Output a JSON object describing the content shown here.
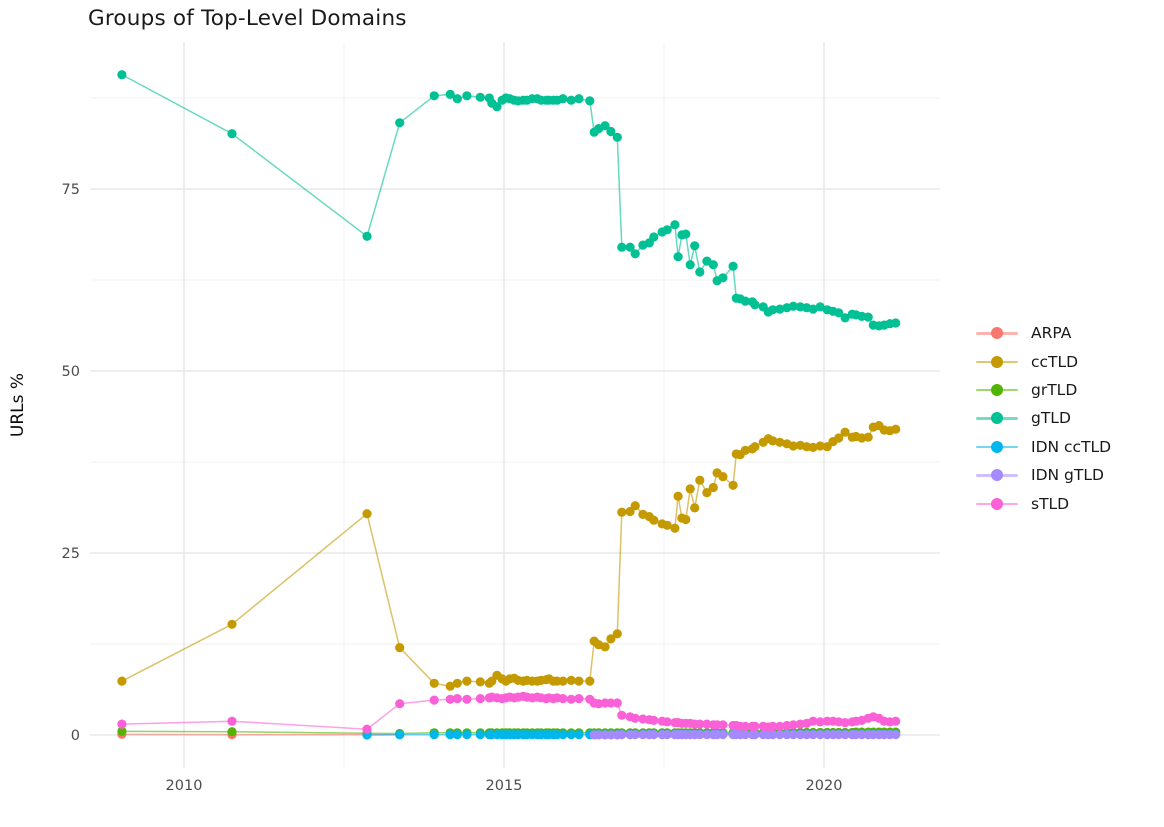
{
  "chart_data": {
    "type": "line",
    "title": "Groups of Top-Level Domains",
    "xlabel": "",
    "ylabel": "URLs %",
    "grid": "major+minor",
    "legend_position": "right",
    "axes": {
      "x": {
        "ticks": [
          2010,
          2015,
          2020
        ],
        "tick_labels": [
          "2010",
          "2015",
          "2020"
        ],
        "minor_ticks": [
          2012.5,
          2017.5
        ],
        "range": [
          2008.5,
          2021.8
        ]
      },
      "y": {
        "ticks": [
          0,
          25,
          50,
          75
        ],
        "tick_labels": [
          "0",
          "25",
          "50",
          "75"
        ],
        "minor_ticks": [
          12.5,
          37.5,
          62.5,
          87.5
        ],
        "range": [
          -4.5,
          95.2
        ]
      }
    },
    "series": [
      {
        "name": "ARPA",
        "color": "#F8766D",
        "x": [
          2009.03,
          2010.75,
          2012.86,
          2013.37
        ],
        "y": [
          0.1,
          0.05,
          0.05,
          0.03
        ]
      },
      {
        "name": "ccTLD",
        "color": "#C49A00",
        "x": [
          2009.03,
          2010.75,
          2012.86,
          2013.37,
          2013.91,
          2014.16,
          2014.27,
          2014.42,
          2014.63,
          2014.77,
          2014.81,
          2014.89,
          2014.97,
          2015.03,
          2015.09,
          2015.16,
          2015.22,
          2015.3,
          2015.36,
          2015.44,
          2015.52,
          2015.58,
          2015.66,
          2015.7,
          2015.77,
          2015.83,
          2015.92,
          2016.05,
          2016.17,
          2016.34,
          2016.41,
          2016.48,
          2016.58,
          2016.67,
          2016.77,
          2016.84,
          2016.97,
          2017.05,
          2017.17,
          2017.27,
          2017.34,
          2017.47,
          2017.55,
          2017.67,
          2017.72,
          2017.78,
          2017.84,
          2017.91,
          2017.98,
          2018.06,
          2018.17,
          2018.27,
          2018.33,
          2018.42,
          2018.58,
          2018.63,
          2018.69,
          2018.77,
          2018.88,
          2018.92,
          2019.05,
          2019.13,
          2019.2,
          2019.31,
          2019.42,
          2019.52,
          2019.63,
          2019.73,
          2019.83,
          2019.94,
          2020.05,
          2020.14,
          2020.23,
          2020.33,
          2020.44,
          2020.5,
          2020.59,
          2020.69,
          2020.77,
          2020.86,
          2020.94,
          2021.03,
          2021.12
        ],
        "y": [
          7.4,
          15.2,
          30.4,
          12.0,
          7.1,
          6.7,
          7.1,
          7.4,
          7.3,
          7.1,
          7.4,
          8.2,
          7.7,
          7.4,
          7.7,
          7.8,
          7.5,
          7.4,
          7.5,
          7.4,
          7.4,
          7.5,
          7.6,
          7.7,
          7.4,
          7.4,
          7.4,
          7.5,
          7.4,
          7.4,
          12.9,
          12.4,
          12.1,
          13.2,
          13.9,
          30.6,
          30.7,
          31.5,
          30.3,
          30.0,
          29.5,
          29.0,
          28.8,
          28.4,
          32.8,
          29.8,
          29.6,
          33.8,
          31.2,
          35.0,
          33.3,
          34.0,
          36.0,
          35.5,
          34.3,
          38.6,
          38.5,
          39.1,
          39.3,
          39.6,
          40.2,
          40.7,
          40.4,
          40.2,
          40.0,
          39.7,
          39.8,
          39.6,
          39.5,
          39.7,
          39.6,
          40.3,
          40.8,
          41.6,
          40.9,
          41.0,
          40.8,
          40.9,
          42.3,
          42.5,
          41.9,
          41.8,
          42.0
        ]
      },
      {
        "name": "grTLD",
        "color": "#53B400",
        "x": [
          2009.03,
          2010.75,
          2012.86,
          2013.37,
          2013.91,
          2014.16,
          2014.27,
          2014.42,
          2014.63,
          2014.77,
          2014.81,
          2014.89,
          2014.97,
          2015.03,
          2015.09,
          2015.16,
          2015.22,
          2015.3,
          2015.36,
          2015.44,
          2015.52,
          2015.58,
          2015.66,
          2015.7,
          2015.77,
          2015.83,
          2015.92,
          2016.05,
          2016.17,
          2016.34,
          2016.41,
          2016.48,
          2016.58,
          2016.67,
          2016.77,
          2016.84,
          2016.97,
          2017.05,
          2017.17,
          2017.27,
          2017.34,
          2017.47,
          2017.55,
          2017.67,
          2017.72,
          2017.78,
          2017.84,
          2017.91,
          2017.98,
          2018.06,
          2018.17,
          2018.27,
          2018.33,
          2018.42,
          2018.58,
          2018.63,
          2018.69,
          2018.77,
          2018.88,
          2018.92,
          2019.05,
          2019.13,
          2019.2,
          2019.31,
          2019.42,
          2019.52,
          2019.63,
          2019.73,
          2019.83,
          2019.94,
          2020.05,
          2020.14,
          2020.23,
          2020.33,
          2020.44,
          2020.5,
          2020.59,
          2020.69,
          2020.77,
          2020.86,
          2020.94,
          2021.03,
          2021.12
        ],
        "y": [
          0.5,
          0.45,
          0.25,
          0.2,
          0.3,
          0.3,
          0.3,
          0.3,
          0.3,
          0.3,
          0.3,
          0.3,
          0.3,
          0.3,
          0.3,
          0.3,
          0.3,
          0.3,
          0.3,
          0.3,
          0.3,
          0.3,
          0.3,
          0.3,
          0.3,
          0.3,
          0.3,
          0.3,
          0.3,
          0.3,
          0.3,
          0.3,
          0.3,
          0.3,
          0.3,
          0.3,
          0.3,
          0.3,
          0.3,
          0.3,
          0.3,
          0.3,
          0.3,
          0.3,
          0.3,
          0.3,
          0.3,
          0.3,
          0.3,
          0.3,
          0.3,
          0.3,
          0.3,
          0.3,
          0.3,
          0.3,
          0.3,
          0.3,
          0.3,
          0.3,
          0.3,
          0.3,
          0.3,
          0.3,
          0.3,
          0.35,
          0.35,
          0.35,
          0.35,
          0.35,
          0.35,
          0.35,
          0.35,
          0.35,
          0.35,
          0.4,
          0.4,
          0.4,
          0.4,
          0.4,
          0.4,
          0.4,
          0.4
        ]
      },
      {
        "name": "gTLD",
        "color": "#00C094",
        "x": [
          2009.03,
          2010.75,
          2012.86,
          2013.37,
          2013.91,
          2014.16,
          2014.27,
          2014.42,
          2014.63,
          2014.77,
          2014.81,
          2014.89,
          2014.97,
          2015.03,
          2015.09,
          2015.16,
          2015.22,
          2015.3,
          2015.36,
          2015.44,
          2015.52,
          2015.58,
          2015.66,
          2015.7,
          2015.77,
          2015.83,
          2015.92,
          2016.05,
          2016.17,
          2016.34,
          2016.41,
          2016.48,
          2016.58,
          2016.67,
          2016.77,
          2016.84,
          2016.97,
          2017.05,
          2017.17,
          2017.27,
          2017.34,
          2017.47,
          2017.55,
          2017.67,
          2017.72,
          2017.78,
          2017.84,
          2017.91,
          2017.98,
          2018.06,
          2018.17,
          2018.27,
          2018.33,
          2018.42,
          2018.58,
          2018.63,
          2018.69,
          2018.77,
          2018.88,
          2018.92,
          2019.05,
          2019.13,
          2019.2,
          2019.31,
          2019.42,
          2019.52,
          2019.63,
          2019.73,
          2019.83,
          2019.94,
          2020.05,
          2020.14,
          2020.23,
          2020.33,
          2020.44,
          2020.5,
          2020.59,
          2020.69,
          2020.77,
          2020.86,
          2020.94,
          2021.03,
          2021.12
        ],
        "y": [
          90.7,
          82.6,
          68.5,
          84.1,
          87.8,
          88.0,
          87.4,
          87.8,
          87.6,
          87.5,
          86.8,
          86.3,
          87.2,
          87.5,
          87.4,
          87.2,
          87.1,
          87.2,
          87.2,
          87.4,
          87.4,
          87.2,
          87.2,
          87.2,
          87.2,
          87.2,
          87.4,
          87.2,
          87.4,
          87.1,
          82.8,
          83.3,
          83.7,
          82.9,
          82.1,
          67.0,
          67.0,
          66.1,
          67.3,
          67.6,
          68.4,
          69.1,
          69.4,
          70.1,
          65.7,
          68.7,
          68.8,
          64.6,
          67.2,
          63.6,
          65.1,
          64.6,
          62.4,
          62.8,
          64.4,
          60.0,
          59.9,
          59.6,
          59.5,
          59.1,
          58.8,
          58.1,
          58.4,
          58.5,
          58.7,
          58.9,
          58.8,
          58.7,
          58.5,
          58.8,
          58.4,
          58.2,
          58.0,
          57.3,
          57.8,
          57.7,
          57.5,
          57.4,
          56.3,
          56.2,
          56.3,
          56.5,
          56.6
        ]
      },
      {
        "name": "IDN ccTLD",
        "color": "#00B6EB",
        "x": [
          2012.86,
          2013.37,
          2013.91,
          2014.16,
          2014.27,
          2014.42,
          2014.63,
          2014.77,
          2014.81,
          2014.89,
          2014.97,
          2015.03,
          2015.09,
          2015.16,
          2015.22,
          2015.3,
          2015.36,
          2015.44,
          2015.52,
          2015.58,
          2015.66,
          2015.7,
          2015.77,
          2015.83,
          2015.92,
          2016.05,
          2016.17,
          2016.34,
          2016.41,
          2016.48,
          2016.58,
          2016.67,
          2016.77,
          2016.84,
          2016.97,
          2017.05,
          2017.17,
          2017.27,
          2017.34,
          2017.47,
          2017.55,
          2017.67,
          2017.72,
          2017.78,
          2017.84,
          2017.91,
          2017.98,
          2018.06,
          2018.17,
          2018.27,
          2018.33,
          2018.42,
          2018.58,
          2018.63,
          2018.69,
          2018.77,
          2018.88,
          2018.92,
          2019.05,
          2019.13,
          2019.2,
          2019.31,
          2019.42,
          2019.52,
          2019.63,
          2019.73,
          2019.83,
          2019.94,
          2020.05,
          2020.14,
          2020.23,
          2020.33,
          2020.44,
          2020.5,
          2020.59,
          2020.69,
          2020.77,
          2020.86,
          2020.94,
          2021.03,
          2021.12
        ],
        "y": [
          0.0,
          0.05,
          0.05,
          0.05,
          0.05,
          0.05,
          0.05,
          0.05,
          0.05,
          0.05,
          0.05,
          0.05,
          0.05,
          0.05,
          0.05,
          0.05,
          0.05,
          0.05,
          0.05,
          0.05,
          0.05,
          0.05,
          0.05,
          0.05,
          0.05,
          0.05,
          0.05,
          0.05,
          0.05,
          0.05,
          0.05,
          0.05,
          0.05,
          0.1,
          0.1,
          0.1,
          0.1,
          0.1,
          0.1,
          0.1,
          0.1,
          0.1,
          0.1,
          0.1,
          0.1,
          0.1,
          0.1,
          0.1,
          0.1,
          0.1,
          0.1,
          0.1,
          0.1,
          0.1,
          0.1,
          0.1,
          0.1,
          0.1,
          0.1,
          0.1,
          0.1,
          0.1,
          0.1,
          0.1,
          0.1,
          0.1,
          0.1,
          0.1,
          0.1,
          0.1,
          0.1,
          0.1,
          0.1,
          0.1,
          0.1,
          0.1,
          0.1,
          0.1,
          0.1,
          0.1,
          0.1
        ]
      },
      {
        "name": "IDN gTLD",
        "color": "#A58AFF",
        "x": [
          2016.41,
          2016.48,
          2016.58,
          2016.67,
          2016.77,
          2016.84,
          2016.97,
          2017.05,
          2017.17,
          2017.27,
          2017.34,
          2017.47,
          2017.55,
          2017.67,
          2017.72,
          2017.78,
          2017.84,
          2017.91,
          2017.98,
          2018.06,
          2018.17,
          2018.27,
          2018.33,
          2018.42,
          2018.58,
          2018.63,
          2018.69,
          2018.77,
          2018.88,
          2018.92,
          2019.05,
          2019.13,
          2019.2,
          2019.31,
          2019.42,
          2019.52,
          2019.63,
          2019.73,
          2019.83,
          2019.94,
          2020.05,
          2020.14,
          2020.23,
          2020.33,
          2020.44,
          2020.5,
          2020.59,
          2020.69,
          2020.77,
          2020.86,
          2020.94,
          2021.03,
          2021.12
        ],
        "y": [
          0.02,
          0.02,
          0.02,
          0.02,
          0.02,
          0.05,
          0.05,
          0.05,
          0.05,
          0.05,
          0.05,
          0.05,
          0.05,
          0.05,
          0.05,
          0.05,
          0.05,
          0.05,
          0.05,
          0.05,
          0.05,
          0.05,
          0.05,
          0.05,
          0.05,
          0.05,
          0.05,
          0.05,
          0.05,
          0.05,
          0.05,
          0.05,
          0.05,
          0.05,
          0.05,
          0.05,
          0.05,
          0.05,
          0.05,
          0.05,
          0.05,
          0.05,
          0.05,
          0.05,
          0.05,
          0.05,
          0.05,
          0.05,
          0.05,
          0.05,
          0.05,
          0.05,
          0.05
        ]
      },
      {
        "name": "sTLD",
        "color": "#FB61D7",
        "x": [
          2009.03,
          2010.75,
          2012.86,
          2013.37,
          2013.91,
          2014.16,
          2014.27,
          2014.42,
          2014.63,
          2014.77,
          2014.81,
          2014.89,
          2014.97,
          2015.03,
          2015.09,
          2015.16,
          2015.22,
          2015.3,
          2015.36,
          2015.44,
          2015.52,
          2015.58,
          2015.66,
          2015.7,
          2015.77,
          2015.83,
          2015.92,
          2016.05,
          2016.17,
          2016.34,
          2016.41,
          2016.48,
          2016.58,
          2016.67,
          2016.77,
          2016.84,
          2016.97,
          2017.05,
          2017.17,
          2017.27,
          2017.34,
          2017.47,
          2017.55,
          2017.67,
          2017.72,
          2017.78,
          2017.84,
          2017.91,
          2017.98,
          2018.06,
          2018.17,
          2018.27,
          2018.33,
          2018.42,
          2018.58,
          2018.63,
          2018.69,
          2018.77,
          2018.88,
          2018.92,
          2019.05,
          2019.13,
          2019.2,
          2019.31,
          2019.42,
          2019.52,
          2019.63,
          2019.73,
          2019.83,
          2019.94,
          2020.05,
          2020.14,
          2020.23,
          2020.33,
          2020.44,
          2020.5,
          2020.59,
          2020.69,
          2020.77,
          2020.86,
          2020.94,
          2021.03,
          2021.12
        ],
        "y": [
          1.5,
          1.9,
          0.8,
          4.3,
          4.8,
          4.9,
          5.0,
          4.9,
          5.0,
          5.1,
          5.2,
          5.1,
          5.0,
          5.1,
          5.2,
          5.1,
          5.2,
          5.3,
          5.2,
          5.1,
          5.2,
          5.1,
          5.0,
          5.1,
          5.0,
          5.1,
          5.0,
          4.9,
          5.0,
          4.9,
          4.4,
          4.3,
          4.4,
          4.4,
          4.4,
          2.7,
          2.5,
          2.3,
          2.2,
          2.1,
          2.0,
          1.9,
          1.8,
          1.7,
          1.7,
          1.6,
          1.6,
          1.6,
          1.5,
          1.5,
          1.5,
          1.4,
          1.4,
          1.4,
          1.3,
          1.3,
          1.2,
          1.2,
          1.2,
          1.2,
          1.2,
          1.1,
          1.2,
          1.2,
          1.3,
          1.4,
          1.5,
          1.6,
          1.9,
          1.8,
          1.9,
          1.9,
          1.8,
          1.7,
          1.8,
          1.9,
          2.0,
          2.3,
          2.5,
          2.3,
          1.9,
          1.8,
          1.9
        ]
      }
    ],
    "style_colors": {
      "grid_major": "#E4E4E4",
      "grid_minor": "#F0F0F0",
      "tick_text": "#4d4d4d",
      "title_text": "#1a1a1a"
    }
  }
}
